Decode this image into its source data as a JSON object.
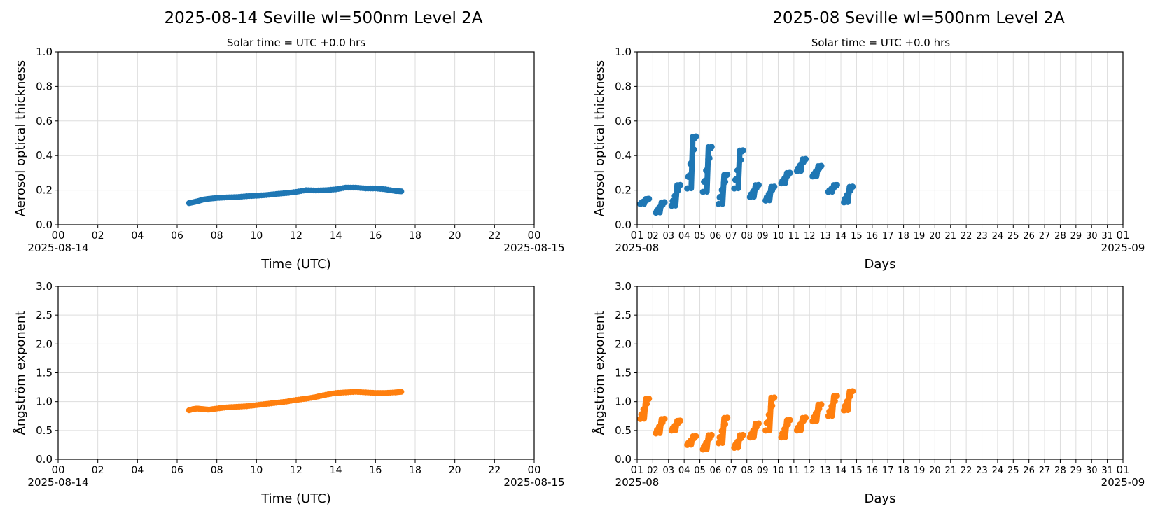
{
  "figure": {
    "left_title": "2025-08-14  Seville  wl=500nm  Level 2A",
    "right_title": "2025-08  Seville  wl=500nm  Level 2A",
    "subtitle": "Solar time = UTC +0.0 hrs"
  },
  "colors": {
    "aod": "#1f77b4",
    "angstrom": "#ff7f0e",
    "grid": "#dddddd"
  },
  "chart_data": [
    {
      "id": "daily-aod",
      "type": "scatter",
      "title": "2025-08-14  Seville  wl=500nm  Level 2A",
      "subtitle": "Solar time = UTC +0.0 hrs",
      "xlabel": "Time (UTC)",
      "ylabel": "Aerosol optical thickness",
      "xlim": [
        0,
        24
      ],
      "ylim": [
        0,
        1.0
      ],
      "xticks": [
        "00",
        "02",
        "04",
        "06",
        "08",
        "10",
        "12",
        "14",
        "16",
        "18",
        "20",
        "22",
        "00"
      ],
      "xtick_values": [
        0,
        2,
        4,
        6,
        8,
        10,
        12,
        14,
        16,
        18,
        20,
        22,
        24
      ],
      "x_start_label": "2025-08-14",
      "x_end_label": "2025-08-15",
      "yticks": [
        "0.0",
        "0.2",
        "0.4",
        "0.6",
        "0.8",
        "1.0"
      ],
      "ytick_values": [
        0,
        0.2,
        0.4,
        0.6,
        0.8,
        1.0
      ],
      "series": [
        {
          "color": "#1f77b4",
          "x": [
            6.6,
            6.8,
            7.0,
            7.3,
            7.6,
            8.0,
            8.5,
            9.0,
            9.5,
            10.0,
            10.5,
            11.0,
            11.5,
            12.0,
            12.5,
            13.0,
            13.5,
            14.0,
            14.5,
            15.0,
            15.5,
            16.0,
            16.5,
            17.0,
            17.3
          ],
          "y": [
            0.125,
            0.13,
            0.135,
            0.145,
            0.15,
            0.155,
            0.158,
            0.16,
            0.165,
            0.168,
            0.172,
            0.178,
            0.183,
            0.19,
            0.2,
            0.198,
            0.2,
            0.205,
            0.215,
            0.215,
            0.21,
            0.21,
            0.205,
            0.195,
            0.193
          ]
        }
      ]
    },
    {
      "id": "monthly-aod",
      "type": "scatter",
      "title": "2025-08  Seville  wl=500nm  Level 2A",
      "subtitle": "Solar time = UTC +0.0 hrs",
      "xlabel": "Days",
      "ylabel": "Aerosol optical thickness",
      "xlim": [
        1,
        32
      ],
      "ylim": [
        0,
        1.0
      ],
      "xticks": [
        "01",
        "02",
        "03",
        "04",
        "05",
        "06",
        "07",
        "08",
        "09",
        "10",
        "11",
        "12",
        "13",
        "14",
        "15",
        "16",
        "17",
        "18",
        "19",
        "20",
        "21",
        "22",
        "23",
        "24",
        "25",
        "26",
        "27",
        "28",
        "29",
        "30",
        "31",
        "01"
      ],
      "x_start_label": "2025-08",
      "x_end_label": "2025-09",
      "yticks": [
        "0.0",
        "0.2",
        "0.4",
        "0.6",
        "0.8",
        "1.0"
      ],
      "ytick_values": [
        0,
        0.2,
        0.4,
        0.6,
        0.8,
        1.0
      ],
      "series": [
        {
          "color": "#1f77b4",
          "days": [
            {
              "day": 1,
              "lo": 0.12,
              "hi": 0.15
            },
            {
              "day": 2,
              "lo": 0.07,
              "hi": 0.13
            },
            {
              "day": 3,
              "lo": 0.11,
              "hi": 0.23
            },
            {
              "day": 4,
              "lo": 0.21,
              "hi": 0.51
            },
            {
              "day": 5,
              "lo": 0.19,
              "hi": 0.45
            },
            {
              "day": 6,
              "lo": 0.12,
              "hi": 0.29
            },
            {
              "day": 7,
              "lo": 0.21,
              "hi": 0.43
            },
            {
              "day": 8,
              "lo": 0.16,
              "hi": 0.23
            },
            {
              "day": 9,
              "lo": 0.14,
              "hi": 0.22
            },
            {
              "day": 10,
              "lo": 0.24,
              "hi": 0.3
            },
            {
              "day": 11,
              "lo": 0.31,
              "hi": 0.38
            },
            {
              "day": 12,
              "lo": 0.28,
              "hi": 0.34
            },
            {
              "day": 13,
              "lo": 0.19,
              "hi": 0.23
            },
            {
              "day": 14,
              "lo": 0.13,
              "hi": 0.22
            }
          ]
        }
      ]
    },
    {
      "id": "daily-angstrom",
      "type": "scatter",
      "xlabel": "Time (UTC)",
      "ylabel": "Ångström exponent",
      "xlim": [
        0,
        24
      ],
      "ylim": [
        0,
        3.0
      ],
      "xticks": [
        "00",
        "02",
        "04",
        "06",
        "08",
        "10",
        "12",
        "14",
        "16",
        "18",
        "20",
        "22",
        "00"
      ],
      "xtick_values": [
        0,
        2,
        4,
        6,
        8,
        10,
        12,
        14,
        16,
        18,
        20,
        22,
        24
      ],
      "x_start_label": "2025-08-14",
      "x_end_label": "2025-08-15",
      "yticks": [
        "0.0",
        "0.5",
        "1.0",
        "1.5",
        "2.0",
        "2.5",
        "3.0"
      ],
      "ytick_values": [
        0,
        0.5,
        1.0,
        1.5,
        2.0,
        2.5,
        3.0
      ],
      "series": [
        {
          "color": "#ff7f0e",
          "x": [
            6.6,
            6.8,
            7.0,
            7.3,
            7.6,
            8.0,
            8.5,
            9.0,
            9.5,
            10.0,
            10.5,
            11.0,
            11.5,
            12.0,
            12.5,
            13.0,
            13.5,
            14.0,
            14.5,
            15.0,
            15.5,
            16.0,
            16.5,
            17.0,
            17.3
          ],
          "y": [
            0.85,
            0.87,
            0.88,
            0.87,
            0.86,
            0.88,
            0.9,
            0.91,
            0.92,
            0.94,
            0.96,
            0.98,
            1.0,
            1.03,
            1.05,
            1.08,
            1.12,
            1.15,
            1.16,
            1.17,
            1.16,
            1.15,
            1.15,
            1.16,
            1.17
          ]
        }
      ]
    },
    {
      "id": "monthly-angstrom",
      "type": "scatter",
      "xlabel": "Days",
      "ylabel": "Ångström exponent",
      "xlim": [
        1,
        32
      ],
      "ylim": [
        0,
        3.0
      ],
      "xticks": [
        "01",
        "02",
        "03",
        "04",
        "05",
        "06",
        "07",
        "08",
        "09",
        "10",
        "11",
        "12",
        "13",
        "14",
        "15",
        "16",
        "17",
        "18",
        "19",
        "20",
        "21",
        "22",
        "23",
        "24",
        "25",
        "26",
        "27",
        "28",
        "29",
        "30",
        "31",
        "01"
      ],
      "x_start_label": "2025-08",
      "x_end_label": "2025-09",
      "yticks": [
        "0.0",
        "0.5",
        "1.0",
        "1.5",
        "2.0",
        "2.5",
        "3.0"
      ],
      "ytick_values": [
        0,
        0.5,
        1.0,
        1.5,
        2.0,
        2.5,
        3.0
      ],
      "series": [
        {
          "color": "#ff7f0e",
          "days": [
            {
              "day": 1,
              "lo": 0.7,
              "hi": 1.05
            },
            {
              "day": 2,
              "lo": 0.45,
              "hi": 0.7
            },
            {
              "day": 3,
              "lo": 0.5,
              "hi": 0.67
            },
            {
              "day": 4,
              "lo": 0.25,
              "hi": 0.4
            },
            {
              "day": 5,
              "lo": 0.17,
              "hi": 0.42
            },
            {
              "day": 6,
              "lo": 0.28,
              "hi": 0.72
            },
            {
              "day": 7,
              "lo": 0.2,
              "hi": 0.42
            },
            {
              "day": 8,
              "lo": 0.38,
              "hi": 0.62
            },
            {
              "day": 9,
              "lo": 0.5,
              "hi": 1.07
            },
            {
              "day": 10,
              "lo": 0.38,
              "hi": 0.68
            },
            {
              "day": 11,
              "lo": 0.5,
              "hi": 0.72
            },
            {
              "day": 12,
              "lo": 0.66,
              "hi": 0.95
            },
            {
              "day": 13,
              "lo": 0.75,
              "hi": 1.1
            },
            {
              "day": 14,
              "lo": 0.85,
              "hi": 1.18
            }
          ]
        }
      ]
    }
  ]
}
